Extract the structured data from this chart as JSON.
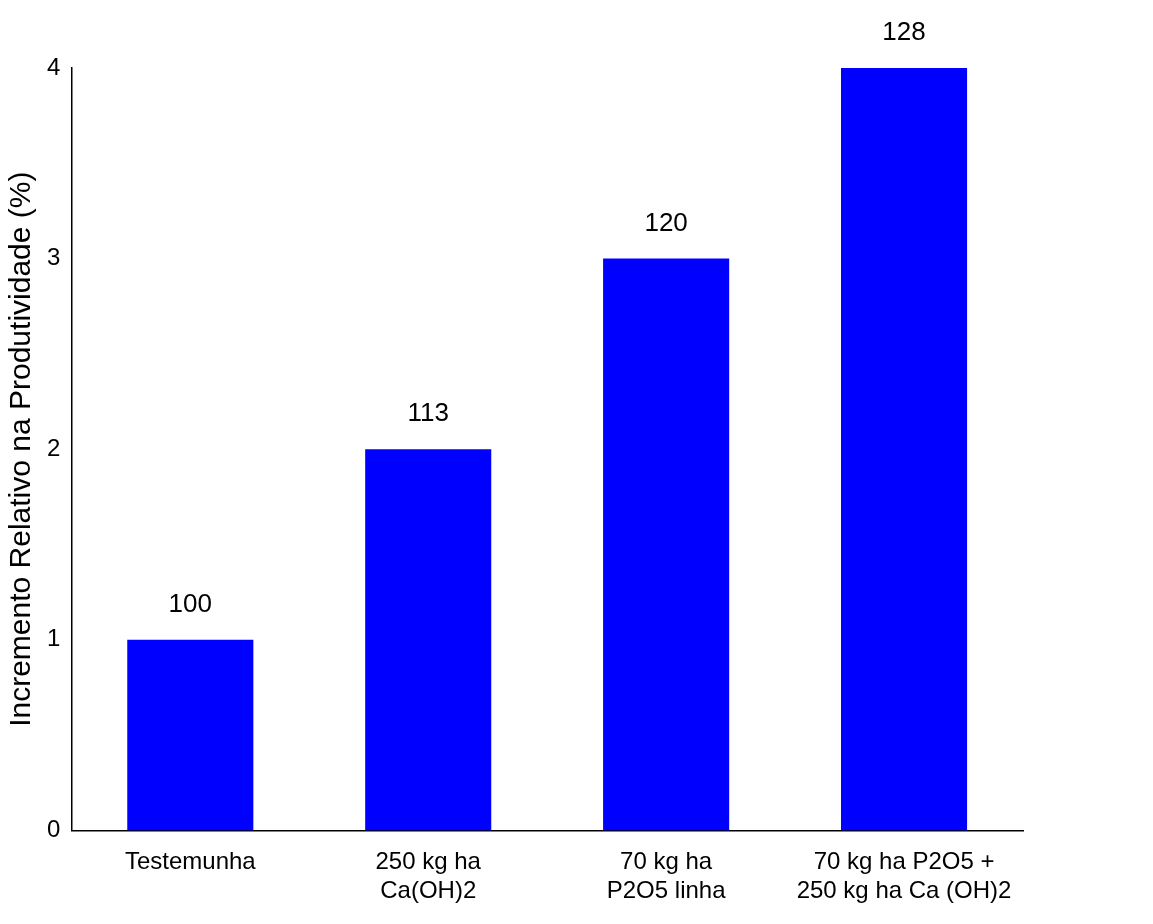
{
  "chart_data": {
    "type": "bar",
    "ylabel": "Incremento Relativo na Produtividade (%)",
    "categories": [
      "Testemunha",
      "250 kg ha\nCa(OH)2",
      "70 kg ha\nP2O5 linha",
      "70 kg ha P2O5 +\n250 kg ha Ca (OH)2"
    ],
    "values": [
      1,
      2,
      3,
      4
    ],
    "annotations": [
      {
        "text": "100",
        "x": "Testemunha",
        "y": 1
      },
      {
        "text": "113",
        "x": "250 kg ha\nCa(OH)2",
        "y": 2
      },
      {
        "text": "120",
        "x": "70 kg ha\nP2O5 linha",
        "y": 3
      },
      {
        "text": "128",
        "x": "70 kg ha P2O5 +\n250 kg ha Ca (OH)2",
        "y": 4
      }
    ],
    "color": "#0000ff",
    "ylim": [
      0,
      4
    ],
    "yticks": [
      0,
      1,
      2,
      3,
      4
    ],
    "grid": false,
    "legend": false
  }
}
